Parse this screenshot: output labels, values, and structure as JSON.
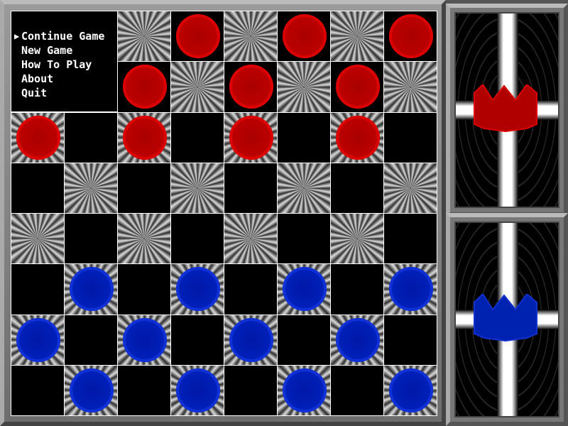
{
  "menu": {
    "items": [
      {
        "label": "Continue Game",
        "selected": true
      },
      {
        "label": "New Game",
        "selected": false
      },
      {
        "label": "How To Play",
        "selected": false
      },
      {
        "label": "About",
        "selected": false
      },
      {
        "label": "Quit",
        "selected": false
      }
    ],
    "selector_glyph": "▶"
  },
  "board": {
    "rows": [
      "-r-r-r-r",
      "r-r-r-r-",
      "r-r-r-r-",
      "-.-.-.-.",
      ".-.-.-.-",
      "-b-b-b-b",
      "b-b-b-b-",
      "-b-b-b-b"
    ]
  },
  "players": [
    {
      "color": "red",
      "hex": "#cc0000",
      "icon": "crown-icon"
    },
    {
      "color": "blue",
      "hex": "#0022bb",
      "icon": "crown-icon"
    }
  ],
  "colors": {
    "red": "#cc0000",
    "blue": "#0022bb"
  }
}
